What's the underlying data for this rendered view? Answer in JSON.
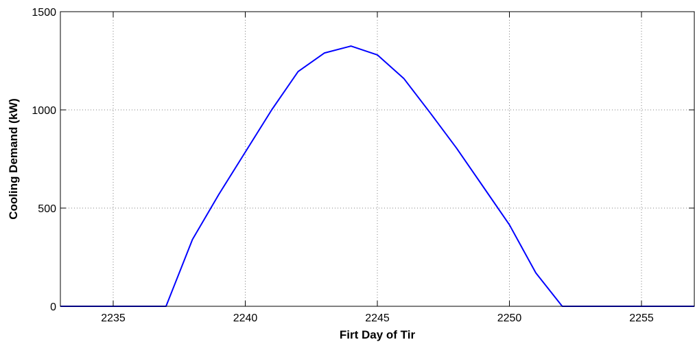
{
  "chart_data": {
    "type": "line",
    "title": "",
    "xlabel": "Firt Day of Tir",
    "ylabel": "Cooling Demand (kW)",
    "xlim": [
      2233,
      2257
    ],
    "ylim": [
      0,
      1500
    ],
    "xticks": [
      2235,
      2240,
      2245,
      2250,
      2255
    ],
    "yticks": [
      0,
      500,
      1000,
      1500
    ],
    "grid": true,
    "colors": {
      "series": "#0000ff",
      "axis": "#000000",
      "grid": "#7f7f7f"
    },
    "series": [
      {
        "name": "",
        "x": [
          2233,
          2234,
          2235,
          2236,
          2237,
          2238,
          2239,
          2240,
          2241,
          2242,
          2243,
          2244,
          2245,
          2246,
          2247,
          2248,
          2249,
          2250,
          2251,
          2252,
          2253,
          2254,
          2255,
          2256,
          2257
        ],
        "y": [
          0,
          0,
          0,
          0,
          0,
          340,
          570,
          785,
          1000,
          1195,
          1290,
          1325,
          1280,
          1160,
          985,
          805,
          610,
          415,
          170,
          0,
          0,
          0,
          0,
          0,
          0
        ]
      }
    ]
  }
}
